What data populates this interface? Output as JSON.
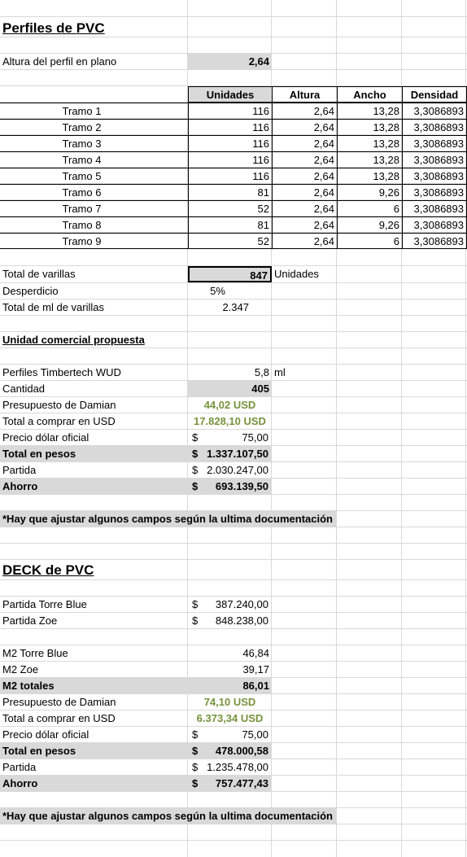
{
  "section1": {
    "title": "Perfiles de PVC",
    "altura_label": "Altura del perfil en plano",
    "altura_value": "2,64",
    "headers": [
      "Unidades",
      "Altura",
      "Ancho",
      "Densidad"
    ],
    "rows": [
      {
        "tramo": "Tramo 1",
        "unidades": "116",
        "altura": "2,64",
        "ancho": "13,28",
        "densidad": "3,3086893"
      },
      {
        "tramo": "Tramo 2",
        "unidades": "116",
        "altura": "2,64",
        "ancho": "13,28",
        "densidad": "3,3086893"
      },
      {
        "tramo": "Tramo 3",
        "unidades": "116",
        "altura": "2,64",
        "ancho": "13,28",
        "densidad": "3,3086893"
      },
      {
        "tramo": "Tramo 4",
        "unidades": "116",
        "altura": "2,64",
        "ancho": "13,28",
        "densidad": "3,3086893"
      },
      {
        "tramo": "Tramo 5",
        "unidades": "116",
        "altura": "2,64",
        "ancho": "13,28",
        "densidad": "3,3086893"
      },
      {
        "tramo": "Tramo 6",
        "unidades": "81",
        "altura": "2,64",
        "ancho": "9,26",
        "densidad": "3,3086893"
      },
      {
        "tramo": "Tramo 7",
        "unidades": "52",
        "altura": "2,64",
        "ancho": "6",
        "densidad": "3,3086893"
      },
      {
        "tramo": "Tramo 8",
        "unidades": "81",
        "altura": "2,64",
        "ancho": "9,26",
        "densidad": "3,3086893"
      },
      {
        "tramo": "Tramo 9",
        "unidades": "52",
        "altura": "2,64",
        "ancho": "6",
        "densidad": "3,3086893"
      }
    ],
    "total_varillas_label": "Total de varillas",
    "total_varillas_value": "847",
    "total_varillas_unit": "Unidades",
    "desperdicio_label": "Desperdicio",
    "desperdicio_value": "5%",
    "total_ml_label": "Total de ml de varillas",
    "total_ml_value": "2.347",
    "unidad_comercial": "Unidad comercial propuesta",
    "perfiles_label": "Perfiles Timbertech WUD",
    "perfiles_value": "5,8",
    "perfiles_unit": "ml",
    "cantidad_label": "Cantidad",
    "cantidad_value": "405",
    "presupuesto_label": "Presupuesto de Damian",
    "presupuesto_value": "44,02 USD",
    "total_usd_label": "Total a comprar en USD",
    "total_usd_value": "17.828,10 USD",
    "dolar_label": "Precio dólar oficial",
    "dolar_value": "75,00",
    "pesos_label": "Total en pesos",
    "pesos_value": "1.337.107,50",
    "partida_label": "Partida",
    "partida_value": "2.030.247,00",
    "ahorro_label": "Ahorro",
    "ahorro_value": "693.139,50",
    "note": "*Hay que ajustar algunos campos según la ultima documentación"
  },
  "section2": {
    "title": "DECK de PVC",
    "partida_torre_label": "Partida Torre Blue",
    "partida_torre_value": "387.240,00",
    "partida_zoe_label": "Partida Zoe",
    "partida_zoe_value": "848.238,00",
    "m2_torre_label": "M2 Torre Blue",
    "m2_torre_value": "46,84",
    "m2_zoe_label": "M2 Zoe",
    "m2_zoe_value": "39,17",
    "m2_totales_label": "M2 totales",
    "m2_totales_value": "86,01",
    "presupuesto_label": "Presupuesto de Damian",
    "presupuesto_value": "74,10 USD",
    "total_usd_label": "Total a comprar en USD",
    "total_usd_value": "6.373,34 USD",
    "dolar_label": "Precio dólar oficial",
    "dolar_value": "75,00",
    "pesos_label": "Total en pesos",
    "pesos_value": "478.000,58",
    "partida_label": "Partida",
    "partida_value": "1.235.478,00",
    "ahorro_label": "Ahorro",
    "ahorro_value": "757.477,43",
    "note": "*Hay que ajustar algunos campos según la ultima documentación"
  },
  "currency_symbol": "$"
}
